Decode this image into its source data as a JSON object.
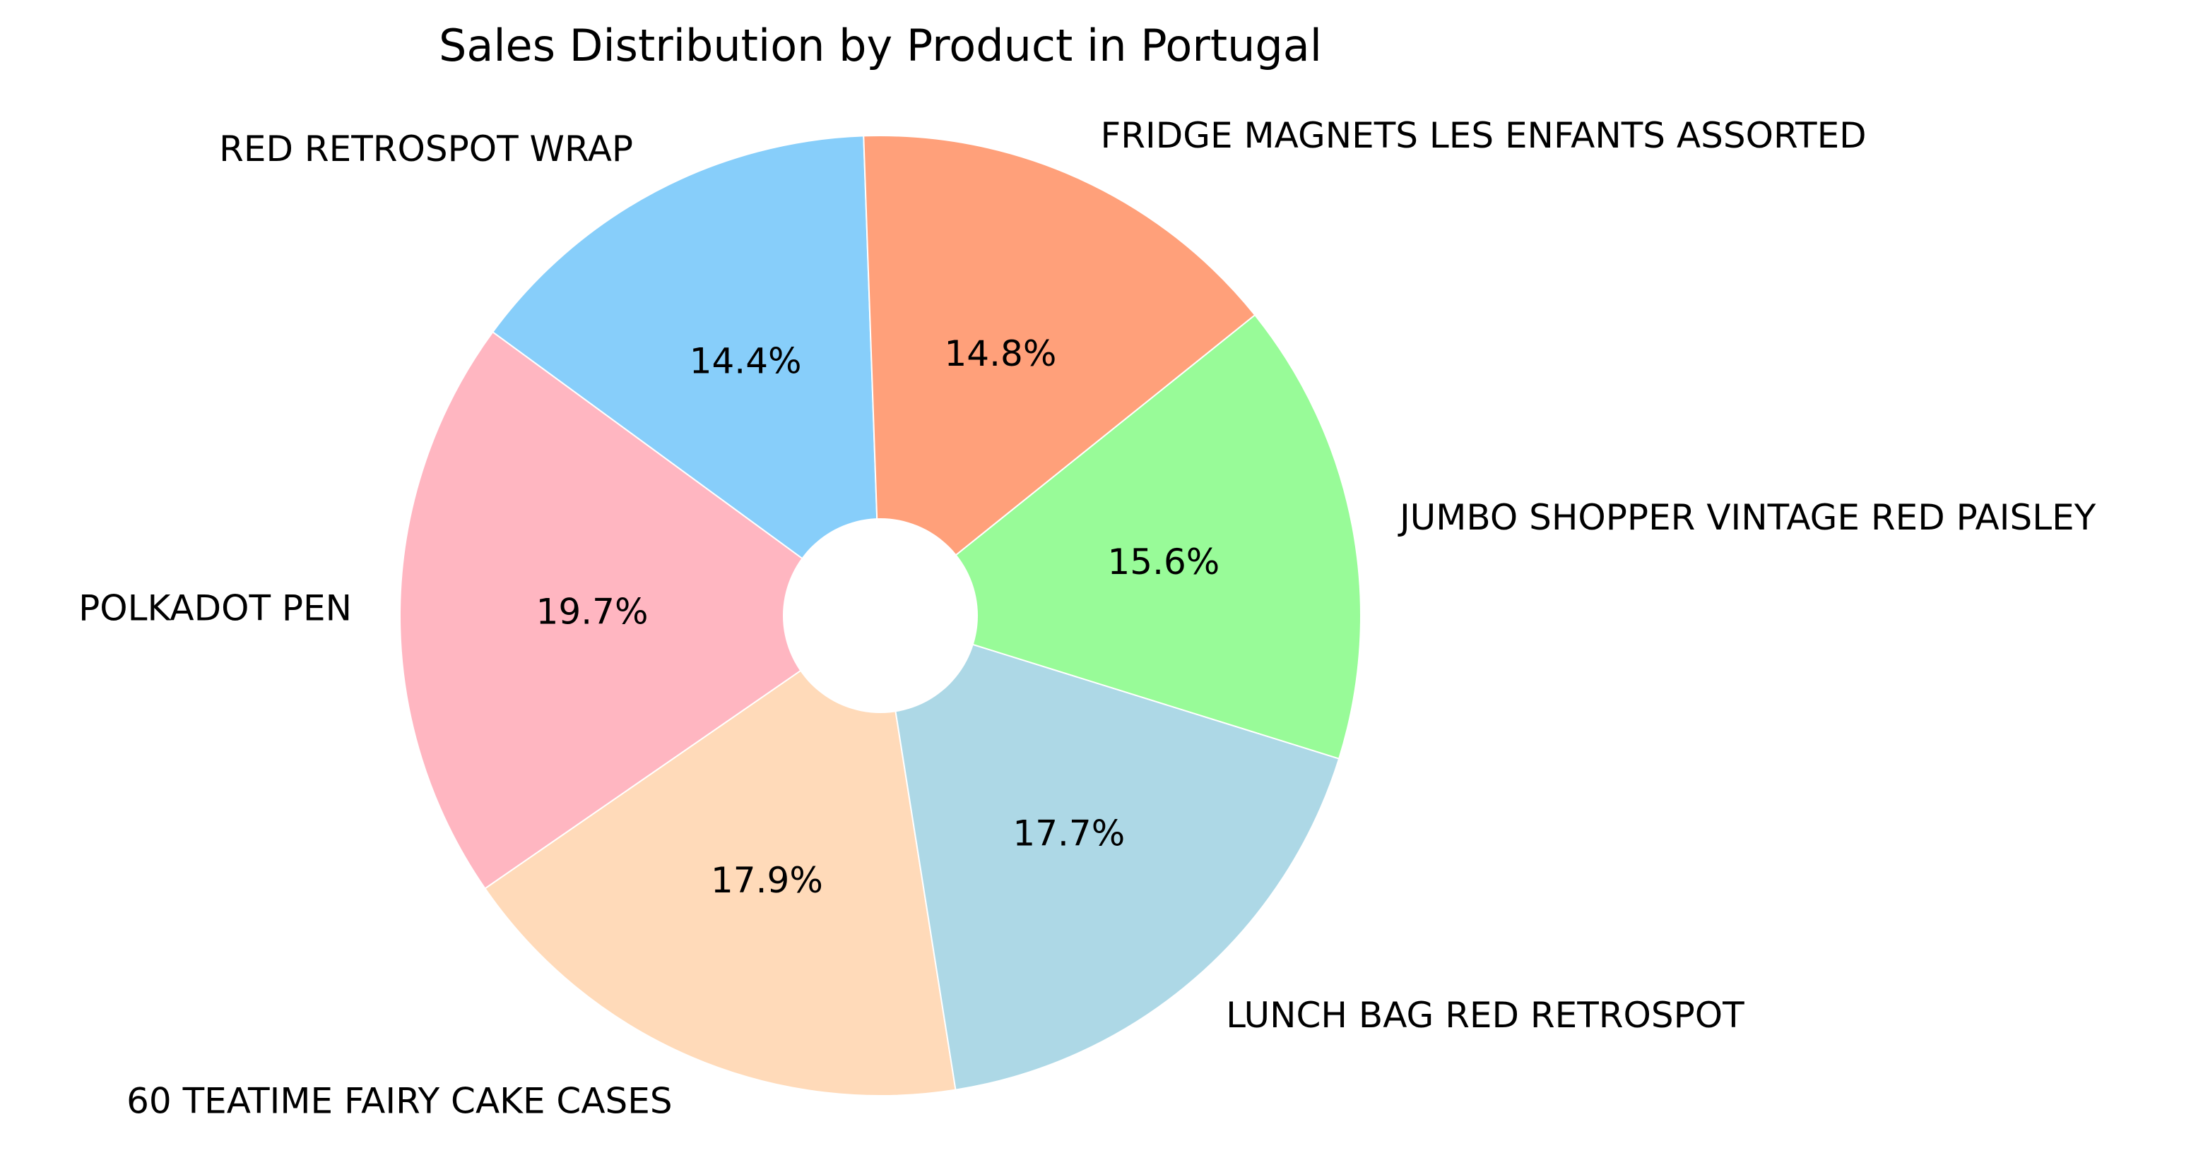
{
  "chart_data": {
    "type": "pie",
    "title": "Sales Distribution by Product in Portugal",
    "slices": [
      {
        "label": "RED RETROSPOT WRAP",
        "value": 14.4,
        "pct_label": "14.4%",
        "color": "#87CEFA"
      },
      {
        "label": "POLKADOT PEN",
        "value": 19.7,
        "pct_label": "19.7%",
        "color": "#FFB6C1"
      },
      {
        "label": "60 TEATIME FAIRY CAKE CASES",
        "value": 17.9,
        "pct_label": "17.9%",
        "color": "#FFDAB9"
      },
      {
        "label": "LUNCH BAG RED RETROSPOT",
        "value": 17.7,
        "pct_label": "17.7%",
        "color": "#ADD8E6"
      },
      {
        "label": "JUMBO SHOPPER VINTAGE RED PAISLEY",
        "value": 15.6,
        "pct_label": "15.6%",
        "color": "#98FB98"
      },
      {
        "label": "FRIDGE MAGNETS LES ENFANTS ASSORTED",
        "value": 14.8,
        "pct_label": "14.8%",
        "color": "#FFA07A"
      }
    ],
    "donut_hole": true,
    "legend": false
  }
}
